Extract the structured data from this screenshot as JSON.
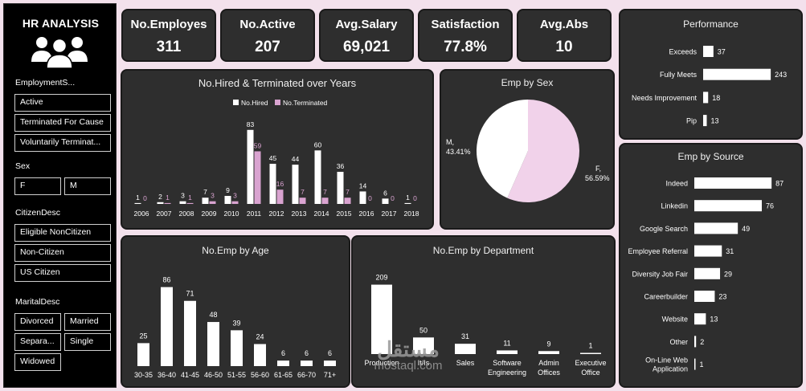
{
  "sidebar": {
    "title": "HR ANALYSIS",
    "employment_status": {
      "label": "EmploymentS...",
      "items": [
        "Active",
        "Terminated For Cause",
        "Voluntarily Terminat..."
      ]
    },
    "sex": {
      "label": "Sex",
      "items": [
        "F",
        "M"
      ]
    },
    "citizen": {
      "label": "CitizenDesc",
      "items": [
        "Eligible NonCitizen",
        "Non-Citizen",
        "US Citizen"
      ]
    },
    "marital": {
      "label": "MaritalDesc",
      "items": [
        "Divorced",
        "Married",
        "Separa...",
        "Single",
        "Widowed"
      ]
    }
  },
  "kpis": [
    {
      "label": "No.Employes",
      "value": "311"
    },
    {
      "label": "No.Active",
      "value": "207"
    },
    {
      "label": "Avg.Salary",
      "value": "69,021"
    },
    {
      "label": "Satisfaction",
      "value": "77.8%"
    },
    {
      "label": "Avg.Abs",
      "value": "10"
    }
  ],
  "watermark": {
    "arabic": "مستقل",
    "latin": "mostaql.com"
  },
  "colors": {
    "hired": "#ffffff",
    "terminated": "#d9a3d0",
    "female": "#f1d2ea",
    "male": "#ffffff",
    "panel": "#2e2e2e",
    "page": "#f3e1ec"
  },
  "chart_data": [
    {
      "id": "hired",
      "type": "bar",
      "title": "No.Hired & Terminated over Years",
      "categories": [
        "2006",
        "2007",
        "2008",
        "2009",
        "2010",
        "2011",
        "2012",
        "2013",
        "2014",
        "2015",
        "2016",
        "2017",
        "2018"
      ],
      "series": [
        {
          "name": "No.Hired",
          "values": [
            1,
            2,
            3,
            7,
            9,
            83,
            45,
            44,
            60,
            36,
            14,
            6,
            1
          ]
        },
        {
          "name": "No.Terminated",
          "values": [
            0,
            1,
            1,
            3,
            3,
            59,
            16,
            7,
            7,
            7,
            0,
            0,
            0
          ]
        }
      ],
      "legend": "top-center",
      "ylim": [
        0,
        90
      ]
    },
    {
      "id": "sex",
      "type": "pie",
      "title": "Emp by Sex",
      "labels": [
        "M",
        "F"
      ],
      "values": [
        43.41,
        56.59
      ],
      "value_labels": [
        "43.41%",
        "56.59%"
      ]
    },
    {
      "id": "performance",
      "type": "bar",
      "orientation": "horizontal",
      "title": "Performance",
      "categories": [
        "Exceeds",
        "Fully Meets",
        "Needs Improvement",
        "Pip"
      ],
      "values": [
        37,
        243,
        18,
        13
      ],
      "xlim": [
        0,
        260
      ]
    },
    {
      "id": "source",
      "type": "bar",
      "orientation": "horizontal",
      "title": "Emp by Source",
      "categories": [
        "Indeed",
        "Linkedin",
        "Google Search",
        "Employee Referral",
        "Diversity Job Fair",
        "Careerbuilder",
        "Website",
        "Other",
        "On-Line Web Application"
      ],
      "values": [
        87,
        76,
        49,
        31,
        29,
        23,
        13,
        2,
        1
      ],
      "xlim": [
        0,
        95
      ]
    },
    {
      "id": "age",
      "type": "bar",
      "title": "No.Emp by Age",
      "categories": [
        "30-35",
        "36-40",
        "41-45",
        "46-50",
        "51-55",
        "56-60",
        "61-65",
        "66-70",
        "71+"
      ],
      "values": [
        25,
        86,
        71,
        48,
        39,
        24,
        6,
        6,
        6
      ],
      "ylim": [
        0,
        90
      ]
    },
    {
      "id": "dept",
      "type": "bar",
      "title": "No.Emp by Department",
      "categories": [
        "Production",
        "It/Is",
        "Sales",
        "Software Engineering",
        "Admin Offices",
        "Executive Office"
      ],
      "values": [
        209,
        50,
        31,
        11,
        9,
        1
      ],
      "ylim": [
        0,
        220
      ]
    }
  ]
}
